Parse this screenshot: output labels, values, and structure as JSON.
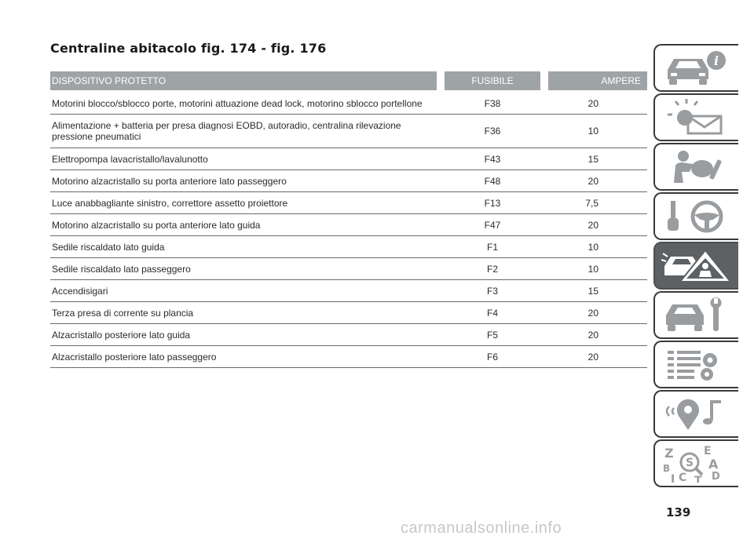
{
  "title": "Centraline abitacolo fig. 174 - fig. 176",
  "table": {
    "headers": [
      "DISPOSITIVO PROTETTO",
      "FUSIBILE",
      "AMPERE"
    ],
    "rows": [
      {
        "device": "Motorini blocco/sblocco porte, motorini attuazione dead lock, motorino sblocco portellone",
        "fuse": "F38",
        "amp": "20"
      },
      {
        "device": "Alimentazione + batteria per presa diagnosi EOBD, autoradio, centralina rilevazione pressione pneumatici",
        "fuse": "F36",
        "amp": "10"
      },
      {
        "device": "Elettropompa lavacristallo/lavalunotto",
        "fuse": "F43",
        "amp": "15"
      },
      {
        "device": "Motorino alzacristallo su porta anteriore lato passeggero",
        "fuse": "F48",
        "amp": "20"
      },
      {
        "device": "Luce anabbagliante sinistro, correttore assetto proiettore",
        "fuse": "F13",
        "amp": "7,5"
      },
      {
        "device": "Motorino alzacristallo su porta anteriore lato guida",
        "fuse": "F47",
        "amp": "20"
      },
      {
        "device": "Sedile riscaldato lato guida",
        "fuse": "F1",
        "amp": "10"
      },
      {
        "device": "Sedile riscaldato lato passeggero",
        "fuse": "F2",
        "amp": "10"
      },
      {
        "device": "Accendisigari",
        "fuse": "F3",
        "amp": "15"
      },
      {
        "device": "Terza presa di corrente su plancia",
        "fuse": "F4",
        "amp": "20"
      },
      {
        "device": "Alzacristallo posteriore lato guida",
        "fuse": "F5",
        "amp": "20"
      },
      {
        "device": "Alzacristallo posteriore lato passeggero",
        "fuse": "F6",
        "amp": "20"
      }
    ]
  },
  "nav": {
    "tabs": [
      {
        "icon": "car-info-icon",
        "active": false
      },
      {
        "icon": "warning-lights-message-icon",
        "active": false
      },
      {
        "icon": "safety-airbag-icon",
        "active": false
      },
      {
        "icon": "key-steering-wheel-icon",
        "active": false
      },
      {
        "icon": "car-emergency-icon",
        "active": true
      },
      {
        "icon": "car-maintenance-icon",
        "active": false
      },
      {
        "icon": "technical-data-icon",
        "active": false
      },
      {
        "icon": "multimedia-icon",
        "active": false
      },
      {
        "icon": "index-icon",
        "active": false
      }
    ],
    "index_letters": [
      "Z",
      "E",
      "B",
      "A",
      "C",
      "D",
      "T",
      "I"
    ]
  },
  "page_number": "139",
  "watermark": "carmanualsonline.info",
  "colors": {
    "header_bg": "#9ea3a6",
    "active_tab": "#5d6163",
    "icon_gray": "#9a9d9f"
  }
}
